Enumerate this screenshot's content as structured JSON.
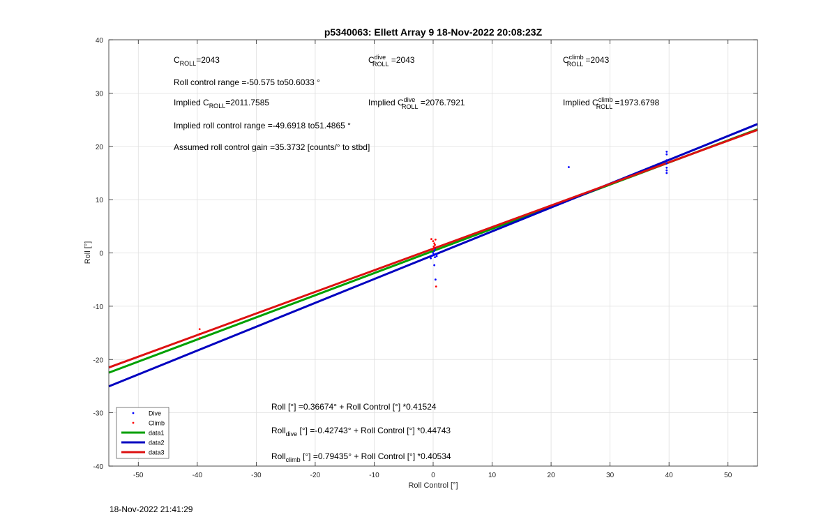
{
  "chart_data": {
    "type": "scatter",
    "title": "p5340063: Ellett Array 9 18-Nov-2022 20:08:23Z",
    "xlabel": "Roll Control [°]",
    "ylabel": "Roll [°]",
    "xlim": [
      -55,
      55
    ],
    "ylim": [
      -40,
      40
    ],
    "xticks": [
      -50,
      -40,
      -30,
      -20,
      -10,
      0,
      10,
      20,
      30,
      40,
      50
    ],
    "yticks": [
      -40,
      -30,
      -20,
      -10,
      0,
      10,
      20,
      30,
      40
    ],
    "grid": true,
    "legend_position": "bottom-left",
    "series": [
      {
        "name": "Dive",
        "kind": "scatter",
        "color": "#0000ff",
        "x": [
          -0.4,
          -0.2,
          0,
          0.1,
          0.2,
          0.3,
          0.5,
          0.2,
          0.4,
          0.6,
          0.3,
          23,
          39.6,
          39.6,
          39.6,
          39.6,
          39.6,
          39.6,
          39.6
        ],
        "y": [
          -1.0,
          -0.5,
          0.0,
          -0.3,
          0.4,
          -0.8,
          -0.2,
          -2.3,
          -5.0,
          -0.6,
          0.8,
          16.1,
          19.0,
          18.5,
          17.4,
          16.8,
          16.0,
          15.5,
          15.0
        ]
      },
      {
        "name": "Climb",
        "kind": "scatter",
        "color": "#ff0000",
        "x": [
          -39.6,
          -39.6,
          -39.6,
          -0.3,
          0,
          0.2,
          0.4,
          0.1,
          -0.1,
          0.3,
          0.5,
          0.2
        ],
        "y": [
          -14.3,
          -15.2,
          -16.0,
          2.6,
          2.2,
          1.8,
          2.5,
          1.2,
          0.6,
          1.5,
          -6.3,
          0.9
        ]
      },
      {
        "name": "data1",
        "kind": "line",
        "color": "#00a000",
        "intercept": 0.36674,
        "slope": 0.41524
      },
      {
        "name": "data2",
        "kind": "line",
        "color": "#0000c0",
        "intercept": -0.42743,
        "slope": 0.44743
      },
      {
        "name": "data3",
        "kind": "line",
        "color": "#dd1111",
        "intercept": 0.79435,
        "slope": 0.40534
      }
    ],
    "annotations": {
      "c_roll": {
        "main": "C",
        "sub": "ROLL",
        "rest": "=2043"
      },
      "c_roll_dive": {
        "main": "C",
        "sup": "dive",
        "sub": "ROLL",
        "rest": " =2043"
      },
      "c_roll_climb": {
        "main": "C",
        "sup": "climb",
        "sub": "ROLL",
        "rest": " =2043"
      },
      "roll_range": "Roll control range =-50.575 to50.6033 °",
      "implied_c_roll": {
        "pre": "Implied C",
        "sub": "ROLL",
        "rest": "=2011.7585"
      },
      "implied_c_roll_dive": {
        "pre": "Implied C",
        "sup": "dive",
        "sub": "ROLL",
        "rest": " =2076.7921"
      },
      "implied_c_roll_climb": {
        "pre": "Implied C",
        "sup": "climb",
        "sub": "ROLL",
        "rest": " =1973.6798"
      },
      "implied_range": "Implied roll control range =-49.6918 to51.4865 °",
      "gain": "Assumed roll control gain =35.3732 [counts/° to stbd]",
      "fit_all": {
        "pre": "Roll [°] =0.36674° + Roll Control [°] *0.41524"
      },
      "fit_dive": {
        "pre": "Roll",
        "sub": "dive",
        "rest": " [°] =-0.42743° + Roll Control [°] *0.44743"
      },
      "fit_climb": {
        "pre": "Roll",
        "sub": "climb",
        "rest": " [°] =0.79435° + Roll Control [°] *0.40534"
      }
    }
  },
  "footer_date": "18-Nov-2022 21:41:29"
}
